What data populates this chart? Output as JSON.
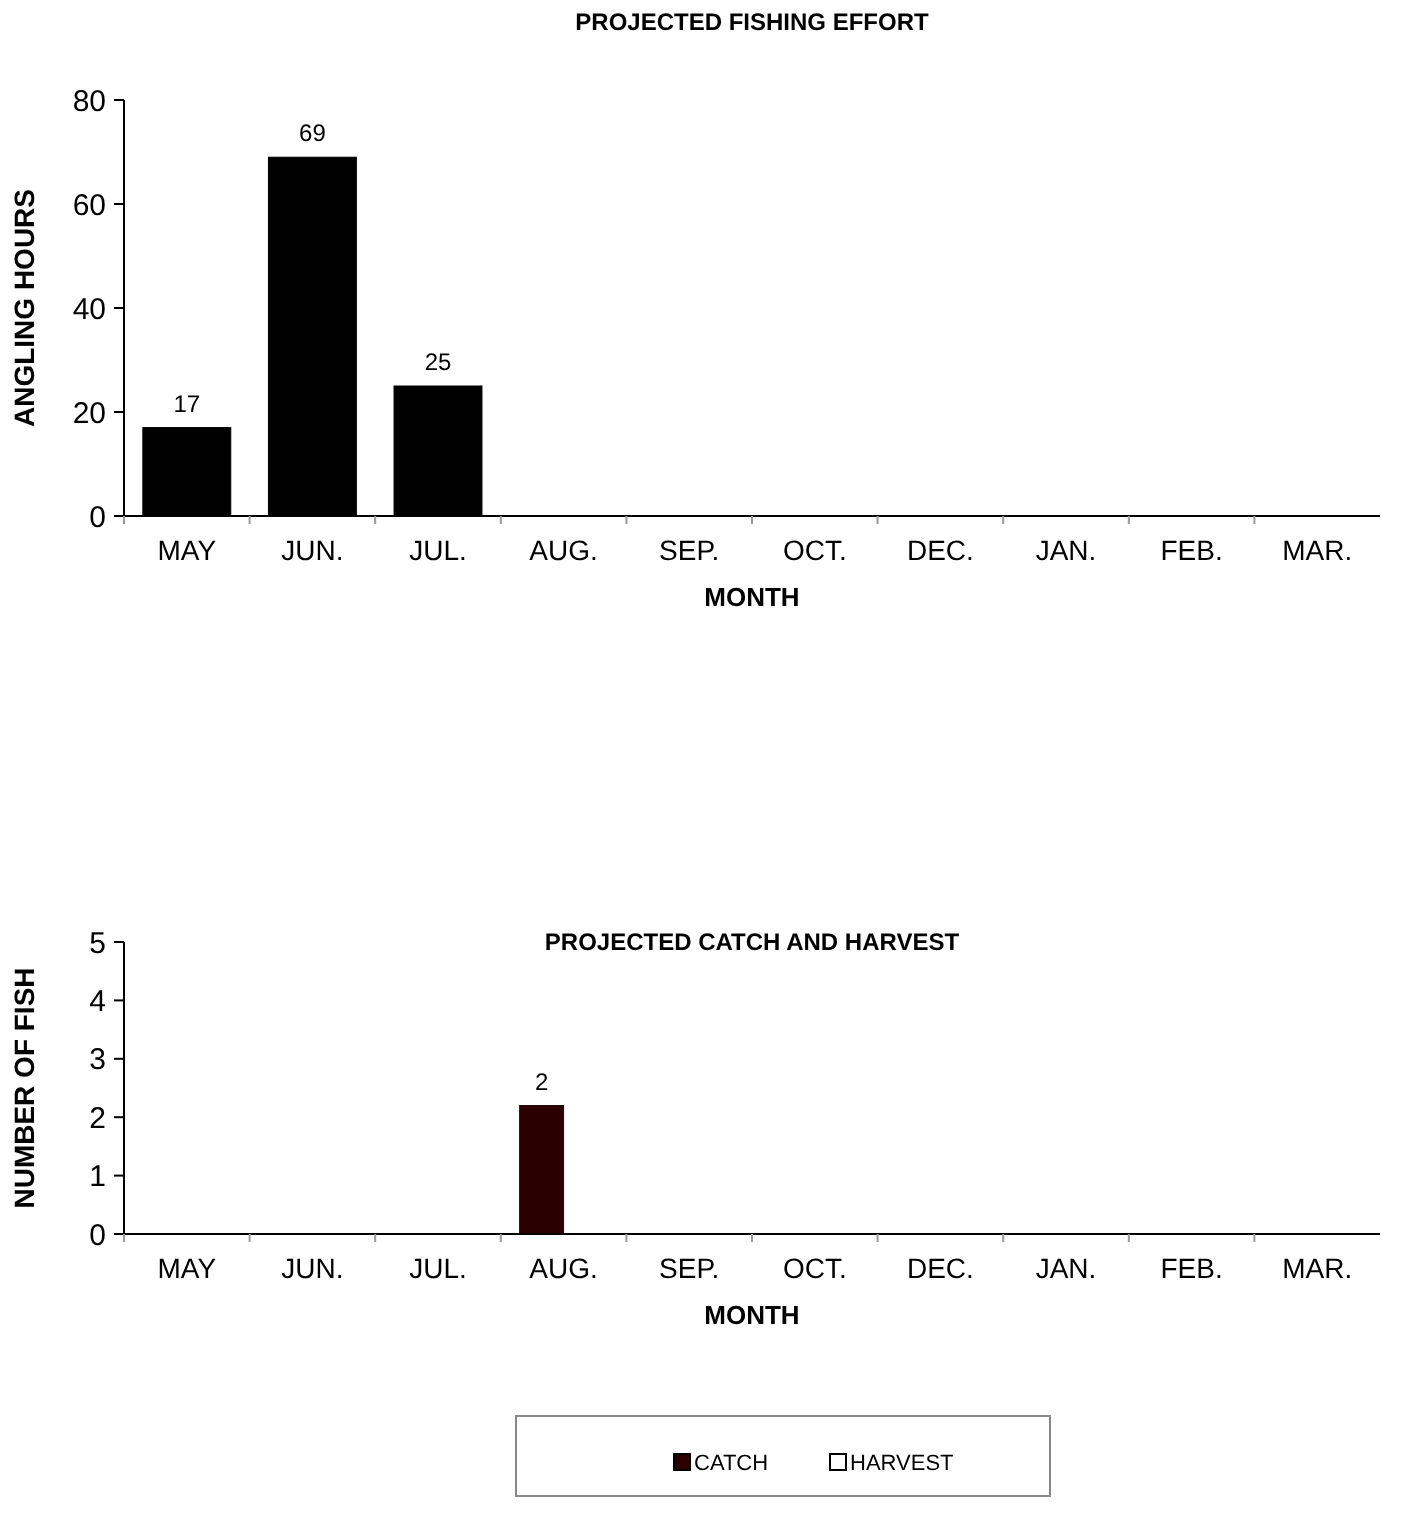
{
  "chart_data": [
    {
      "type": "bar",
      "title": "PROJECTED FISHING EFFORT",
      "xlabel": "MONTH",
      "ylabel": "ANGLING HOURS",
      "categories": [
        "MAY",
        "JUN.",
        "JUL.",
        "AUG.",
        "SEP.",
        "OCT.",
        "DEC.",
        "JAN.",
        "FEB.",
        "MAR."
      ],
      "values": [
        17,
        69,
        25,
        0,
        0,
        0,
        0,
        0,
        0,
        0
      ],
      "value_labels": [
        "17",
        "69",
        "25",
        null,
        null,
        null,
        null,
        null,
        null,
        null
      ],
      "color": "#000000",
      "ylim": [
        0,
        80
      ],
      "yticks": [
        0,
        20,
        40,
        60,
        80
      ],
      "grid": false
    },
    {
      "type": "bar",
      "title": "PROJECTED CATCH AND HARVEST",
      "xlabel": "MONTH",
      "ylabel": "NUMBER OF FISH",
      "categories": [
        "MAY",
        "JUN.",
        "JUL.",
        "AUG.",
        "SEP.",
        "OCT.",
        "DEC.",
        "JAN.",
        "FEB.",
        "MAR."
      ],
      "series": [
        {
          "name": "CATCH",
          "color": "#2a0000",
          "values": [
            0,
            0,
            0,
            2.2,
            0,
            0,
            0,
            0,
            0,
            0
          ],
          "value_labels": [
            null,
            null,
            null,
            "2",
            null,
            null,
            null,
            null,
            null,
            null
          ]
        },
        {
          "name": "HARVEST",
          "color": "#ffffff",
          "values": [
            0,
            0,
            0,
            0,
            0,
            0,
            0,
            0,
            0,
            0
          ]
        }
      ],
      "ylim": [
        0,
        5
      ],
      "yticks": [
        0,
        1,
        2,
        3,
        4,
        5
      ],
      "grid": false,
      "legend": "bottom"
    }
  ]
}
